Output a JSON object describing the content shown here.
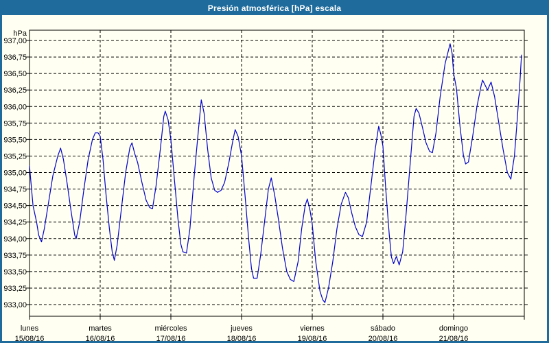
{
  "window": {
    "title": "Presión atmosférica [hPa] escala"
  },
  "colors": {
    "frame": "#1E6B9C",
    "title_text": "#FFFFFF",
    "background": "#FFFFF2",
    "grid": "#000000",
    "axis": "#000000",
    "text": "#000000",
    "line": "#0000CC"
  },
  "chart_data": {
    "type": "line",
    "title": "Presión atmosférica [hPa] escala",
    "ylabel": "hPa",
    "ylim": [
      933.0,
      937.0
    ],
    "y_step": 0.25,
    "grid": "dashed",
    "legend_position": "none",
    "y_tick_labels": [
      "937,00",
      "936,75",
      "936,50",
      "936,25",
      "936,00",
      "935,75",
      "935,50",
      "935,25",
      "935,00",
      "934,75",
      "934,50",
      "934,25",
      "934,00",
      "933,75",
      "933,50",
      "933,25",
      "933,00"
    ],
    "y_tick_values": [
      937.0,
      936.75,
      936.5,
      936.25,
      936.0,
      935.75,
      935.5,
      935.25,
      935.0,
      934.75,
      934.5,
      934.25,
      934.0,
      933.75,
      933.5,
      933.25,
      933.0
    ],
    "x_axis_days": [
      {
        "label": "lunes",
        "date": "15/08/16"
      },
      {
        "label": "martes",
        "date": "16/08/16"
      },
      {
        "label": "miércoles",
        "date": "17/08/16"
      },
      {
        "label": "jueves",
        "date": "18/08/16"
      },
      {
        "label": "viernes",
        "date": "19/08/16"
      },
      {
        "label": "sábado",
        "date": "20/08/16"
      },
      {
        "label": "domingo",
        "date": "21/08/16"
      }
    ],
    "series": [
      {
        "name": "Presión atmosférica",
        "color": "#0000CC",
        "points": [
          [
            0.0,
            935.1
          ],
          [
            0.05,
            934.5
          ],
          [
            0.1,
            934.25
          ],
          [
            0.13,
            934.05
          ],
          [
            0.17,
            933.95
          ],
          [
            0.21,
            934.15
          ],
          [
            0.27,
            934.55
          ],
          [
            0.33,
            934.95
          ],
          [
            0.4,
            935.25
          ],
          [
            0.44,
            935.37
          ],
          [
            0.48,
            935.2
          ],
          [
            0.53,
            934.85
          ],
          [
            0.59,
            934.4
          ],
          [
            0.64,
            934.05
          ],
          [
            0.66,
            934.0
          ],
          [
            0.71,
            934.25
          ],
          [
            0.77,
            934.75
          ],
          [
            0.83,
            935.2
          ],
          [
            0.89,
            935.5
          ],
          [
            0.93,
            935.6
          ],
          [
            0.97,
            935.6
          ],
          [
            1.0,
            935.55
          ],
          [
            1.04,
            935.2
          ],
          [
            1.08,
            934.7
          ],
          [
            1.13,
            934.15
          ],
          [
            1.17,
            933.8
          ],
          [
            1.2,
            933.67
          ],
          [
            1.24,
            933.9
          ],
          [
            1.3,
            934.45
          ],
          [
            1.36,
            935.0
          ],
          [
            1.42,
            935.38
          ],
          [
            1.45,
            935.45
          ],
          [
            1.49,
            935.28
          ],
          [
            1.53,
            935.15
          ],
          [
            1.59,
            934.85
          ],
          [
            1.65,
            934.58
          ],
          [
            1.7,
            934.47
          ],
          [
            1.74,
            934.45
          ],
          [
            1.79,
            934.8
          ],
          [
            1.85,
            935.35
          ],
          [
            1.9,
            935.85
          ],
          [
            1.92,
            935.93
          ],
          [
            1.96,
            935.8
          ],
          [
            2.0,
            935.5
          ],
          [
            2.05,
            934.9
          ],
          [
            2.1,
            934.3
          ],
          [
            2.14,
            933.92
          ],
          [
            2.17,
            933.8
          ],
          [
            2.22,
            933.78
          ],
          [
            2.27,
            934.15
          ],
          [
            2.33,
            934.95
          ],
          [
            2.39,
            935.65
          ],
          [
            2.43,
            936.1
          ],
          [
            2.47,
            935.9
          ],
          [
            2.52,
            935.35
          ],
          [
            2.57,
            934.92
          ],
          [
            2.62,
            934.73
          ],
          [
            2.66,
            934.7
          ],
          [
            2.71,
            934.73
          ],
          [
            2.76,
            934.85
          ],
          [
            2.82,
            935.15
          ],
          [
            2.88,
            935.5
          ],
          [
            2.91,
            935.65
          ],
          [
            2.95,
            935.55
          ],
          [
            3.0,
            935.25
          ],
          [
            3.05,
            934.65
          ],
          [
            3.1,
            934.0
          ],
          [
            3.14,
            933.55
          ],
          [
            3.17,
            933.4
          ],
          [
            3.22,
            933.4
          ],
          [
            3.27,
            933.75
          ],
          [
            3.33,
            934.3
          ],
          [
            3.38,
            934.75
          ],
          [
            3.42,
            934.92
          ],
          [
            3.47,
            934.65
          ],
          [
            3.52,
            934.3
          ],
          [
            3.58,
            933.85
          ],
          [
            3.64,
            933.5
          ],
          [
            3.69,
            933.38
          ],
          [
            3.74,
            933.35
          ],
          [
            3.8,
            933.65
          ],
          [
            3.85,
            934.15
          ],
          [
            3.9,
            934.5
          ],
          [
            3.93,
            934.6
          ],
          [
            3.97,
            934.42
          ],
          [
            4.0,
            934.22
          ],
          [
            4.05,
            933.65
          ],
          [
            4.11,
            933.2
          ],
          [
            4.15,
            933.07
          ],
          [
            4.18,
            933.03
          ],
          [
            4.23,
            933.25
          ],
          [
            4.29,
            933.65
          ],
          [
            4.35,
            934.15
          ],
          [
            4.41,
            934.52
          ],
          [
            4.47,
            934.7
          ],
          [
            4.51,
            934.62
          ],
          [
            4.56,
            934.38
          ],
          [
            4.61,
            934.18
          ],
          [
            4.66,
            934.06
          ],
          [
            4.71,
            934.03
          ],
          [
            4.77,
            934.25
          ],
          [
            4.83,
            934.8
          ],
          [
            4.89,
            935.35
          ],
          [
            4.94,
            935.7
          ],
          [
            4.97,
            935.58
          ],
          [
            5.0,
            935.4
          ],
          [
            5.04,
            934.75
          ],
          [
            5.09,
            934.05
          ],
          [
            5.12,
            933.72
          ],
          [
            5.15,
            933.62
          ],
          [
            5.19,
            933.73
          ],
          [
            5.23,
            933.6
          ],
          [
            5.28,
            933.8
          ],
          [
            5.33,
            934.4
          ],
          [
            5.39,
            935.2
          ],
          [
            5.44,
            935.85
          ],
          [
            5.47,
            935.97
          ],
          [
            5.51,
            935.9
          ],
          [
            5.56,
            935.68
          ],
          [
            5.61,
            935.45
          ],
          [
            5.66,
            935.32
          ],
          [
            5.7,
            935.3
          ],
          [
            5.75,
            935.6
          ],
          [
            5.81,
            936.15
          ],
          [
            5.88,
            936.65
          ],
          [
            5.95,
            936.95
          ],
          [
            5.98,
            936.8
          ],
          [
            6.0,
            936.5
          ],
          [
            6.04,
            936.28
          ],
          [
            6.09,
            935.7
          ],
          [
            6.14,
            935.25
          ],
          [
            6.17,
            935.13
          ],
          [
            6.21,
            935.16
          ],
          [
            6.27,
            935.55
          ],
          [
            6.33,
            936.0
          ],
          [
            6.39,
            936.32
          ],
          [
            6.41,
            936.4
          ],
          [
            6.48,
            936.25
          ],
          [
            6.53,
            936.37
          ],
          [
            6.58,
            936.15
          ],
          [
            6.64,
            935.75
          ],
          [
            6.7,
            935.35
          ],
          [
            6.76,
            935.0
          ],
          [
            6.81,
            934.9
          ],
          [
            6.86,
            935.25
          ],
          [
            6.9,
            935.8
          ],
          [
            6.94,
            936.4
          ],
          [
            6.96,
            936.78
          ]
        ]
      }
    ]
  }
}
